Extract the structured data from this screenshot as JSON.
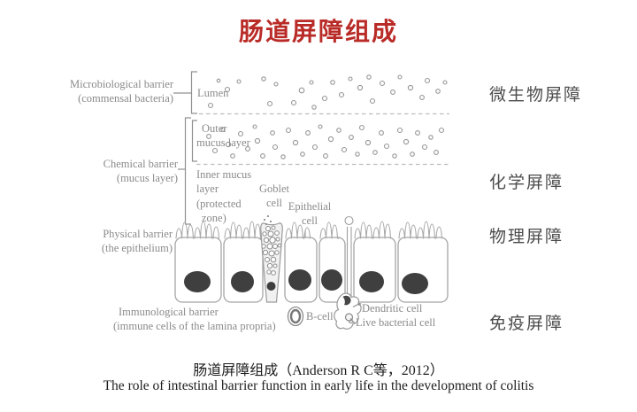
{
  "title": {
    "text": "肠道屏障组成"
  },
  "colors": {
    "title": "#b92b27",
    "label_gray": "#8a8a8a",
    "line_gray": "#a5a5a5",
    "nucleus": "#3f3f3f",
    "right_label": "#4c4c4c",
    "caption": "#1d1d1d"
  },
  "left_labels": {
    "microbiological": {
      "line1": "Microbiological barrier",
      "line2": "(commensal bacteria)"
    },
    "chemical": {
      "line1": "Chemical barrier",
      "line2": "(mucus layer)"
    },
    "physical": {
      "line1": "Physical barrier",
      "line2": "(the epithelium)"
    },
    "immunological": {
      "line1": "Immunological barrier",
      "line2": "(immune cells of the lamina propria)"
    }
  },
  "diagram_labels": {
    "lumen": "Lumen",
    "outer_mucus_line1": "Outer",
    "outer_mucus_line2": "mucus layer",
    "inner_mucus_line1": "Inner mucus",
    "inner_mucus_line2": "layer",
    "inner_mucus_line3": "(protected",
    "inner_mucus_line4": "zone)",
    "goblet_line1": "Goblet",
    "goblet_line2": "cell",
    "epithelial_line1": "Epithelial",
    "epithelial_line2": "cell",
    "b_cell": "B-cell",
    "dendritic_cell": "Dendritic cell",
    "live_bacterial_cell": "Live bacterial cell"
  },
  "right_labels": [
    "微生物屏障",
    "化学屏障",
    "物理屏障",
    "免疫屏障"
  ],
  "caption": {
    "chinese": "肠道屏障组成（Anderson R C等，2012）",
    "english": "The role of intestinal barrier function in early life in the development of colitis"
  },
  "diagram": {
    "lumen_bacteria": [
      [
        247,
        91,
        1.8
      ],
      [
        257,
        101,
        2.5
      ],
      [
        238,
        119,
        2.5
      ],
      [
        270,
        92,
        2
      ],
      [
        298,
        89,
        2.2
      ],
      [
        305,
        117,
        2.5
      ],
      [
        312,
        95,
        2
      ],
      [
        332,
        116,
        2.5
      ],
      [
        341,
        102,
        2.8
      ],
      [
        352,
        93,
        2
      ],
      [
        355,
        121,
        2.2
      ],
      [
        367,
        111,
        2.5
      ],
      [
        376,
        93,
        2.3
      ],
      [
        386,
        107,
        2.5
      ],
      [
        396,
        89,
        2
      ],
      [
        407,
        99,
        2.6
      ],
      [
        417,
        87,
        2.2
      ],
      [
        421,
        114,
        2.5
      ],
      [
        432,
        94,
        2.5
      ],
      [
        444,
        104,
        2.4
      ],
      [
        452,
        87,
        2
      ],
      [
        464,
        99,
        2.6
      ],
      [
        477,
        110,
        2.4
      ],
      [
        483,
        91,
        2.5
      ],
      [
        495,
        103,
        2.3
      ],
      [
        503,
        93,
        2
      ]
    ],
    "outer_mucus_bacteria": [
      [
        236,
        154,
        2.4
      ],
      [
        243,
        170,
        2.5
      ],
      [
        252,
        146,
        2.2
      ],
      [
        258,
        163,
        2.6
      ],
      [
        263,
        176,
        2.3
      ],
      [
        272,
        151,
        2.5
      ],
      [
        280,
        168,
        2.4
      ],
      [
        288,
        143,
        2
      ],
      [
        291,
        159,
        2.6
      ],
      [
        297,
        176,
        2.4
      ],
      [
        308,
        150,
        2.3
      ],
      [
        311,
        166,
        2.5
      ],
      [
        320,
        177,
        2.2
      ],
      [
        326,
        147,
        2.5
      ],
      [
        334,
        161,
        2.6
      ],
      [
        342,
        174,
        2.3
      ],
      [
        348,
        150,
        2.4
      ],
      [
        356,
        166,
        2.5
      ],
      [
        362,
        143,
        2
      ],
      [
        368,
        176,
        2.4
      ],
      [
        374,
        157,
        2.6
      ],
      [
        383,
        147,
        2.3
      ],
      [
        389,
        169,
        2.5
      ],
      [
        397,
        155,
        2.4
      ],
      [
        404,
        174,
        2.2
      ],
      [
        409,
        144,
        2.5
      ],
      [
        416,
        161,
        2.6
      ],
      [
        424,
        172,
        2.3
      ],
      [
        431,
        150,
        2.4
      ],
      [
        437,
        165,
        2.5
      ],
      [
        446,
        176,
        2.2
      ],
      [
        452,
        147,
        2.5
      ],
      [
        459,
        160,
        2.6
      ],
      [
        466,
        174,
        2.3
      ],
      [
        472,
        150,
        2.4
      ],
      [
        480,
        166,
        2.5
      ],
      [
        487,
        155,
        2.2
      ],
      [
        493,
        172,
        2.4
      ],
      [
        499,
        147,
        2.5
      ]
    ],
    "epithelial_cells": [
      [
        198,
        250,
        223,
        318,
        15
      ],
      [
        253,
        297,
        274,
        318,
        13
      ],
      [
        322,
        358,
        339,
        316,
        13
      ],
      [
        361,
        390,
        375,
        316,
        12
      ],
      [
        400,
        447,
        420,
        318,
        14
      ],
      [
        450,
        506,
        469,
        320,
        15
      ]
    ],
    "goblet_granules": [
      [
        303,
        258,
        2.5
      ],
      [
        309,
        257,
        2
      ],
      [
        299,
        264,
        2.2
      ],
      [
        306,
        264,
        3
      ],
      [
        313,
        263,
        2.4
      ],
      [
        301,
        271,
        2.6
      ],
      [
        308,
        271,
        3.2
      ],
      [
        314,
        270,
        2
      ],
      [
        298,
        278,
        2.2
      ],
      [
        305,
        278,
        3
      ],
      [
        311,
        278,
        2.5
      ],
      [
        316,
        277,
        1.8
      ],
      [
        300,
        285,
        2.6
      ],
      [
        307,
        286,
        3
      ],
      [
        313,
        285,
        2.2
      ],
      [
        302,
        293,
        2.5
      ],
      [
        309,
        293,
        2.8
      ],
      [
        305,
        300,
        2.6
      ],
      [
        311,
        300,
        2
      ],
      [
        304,
        307,
        2.2
      ],
      [
        309,
        308,
        2.4
      ]
    ],
    "secretion_dots": [
      [
        303,
        244
      ],
      [
        299,
        248
      ],
      [
        306,
        250
      ],
      [
        301,
        253
      ]
    ]
  }
}
